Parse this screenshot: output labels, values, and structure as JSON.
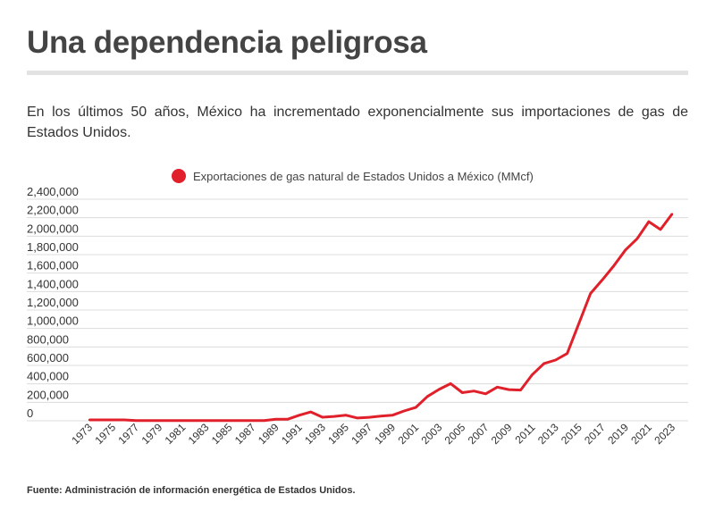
{
  "header": {
    "title": "Una dependencia peligrosa",
    "subtitle": "En los últimos 50 años, México ha incrementado exponencialmente sus importaciones de gas de Estados Unidos."
  },
  "footer": {
    "source": "Fuente: Administración de información energética de Estados Unidos."
  },
  "chart_data": {
    "type": "line",
    "title": "",
    "xlabel": "",
    "ylabel": "",
    "legend": {
      "position": "top-center",
      "entries": [
        "Exportaciones de gas natural de Estados Unidos a México (MMcf)"
      ]
    },
    "series_color": "#e0202a",
    "grid": true,
    "ylim": [
      0,
      2400000
    ],
    "yticks": [
      0,
      200000,
      400000,
      600000,
      800000,
      1000000,
      1200000,
      1400000,
      1600000,
      1800000,
      2000000,
      2200000,
      2400000
    ],
    "ytick_labels": [
      "0",
      "200,000",
      "400,000",
      "600,000",
      "800,000",
      "1,000,000",
      "1,200,000",
      "1,400,000",
      "1,600,000",
      "1,800,000",
      "2,000,000",
      "2,200,000",
      "2,400,000"
    ],
    "xtick_labels": [
      "1973",
      "1975",
      "1977",
      "1979",
      "1981",
      "1983",
      "1985",
      "1987",
      "1989",
      "1991",
      "1993",
      "1995",
      "1997",
      "1999",
      "2001",
      "2003",
      "2005",
      "2007",
      "2009",
      "2011",
      "2013",
      "2015",
      "2017",
      "2019",
      "2021",
      "2023"
    ],
    "x": [
      1973,
      1974,
      1975,
      1976,
      1977,
      1978,
      1979,
      1980,
      1981,
      1982,
      1983,
      1984,
      1985,
      1986,
      1987,
      1988,
      1989,
      1990,
      1991,
      1992,
      1993,
      1994,
      1995,
      1996,
      1997,
      1998,
      1999,
      2000,
      2001,
      2002,
      2003,
      2004,
      2005,
      2006,
      2007,
      2008,
      2009,
      2010,
      2011,
      2012,
      2013,
      2014,
      2015,
      2016,
      2017,
      2018,
      2019,
      2020,
      2021,
      2022,
      2023
    ],
    "series": [
      {
        "name": "Exportaciones de gas natural de Estados Unidos a México (MMcf)",
        "values": [
          10000,
          10000,
          10000,
          10000,
          2000,
          2000,
          2000,
          2000,
          2000,
          2000,
          2000,
          2000,
          2000,
          2000,
          2000,
          2000,
          17000,
          16000,
          60000,
          96000,
          39000,
          47000,
          61000,
          30000,
          38000,
          50000,
          60000,
          106000,
          144000,
          263000,
          340000,
          403000,
          305000,
          322000,
          292000,
          365000,
          338000,
          333000,
          499000,
          620000,
          658000,
          729000,
          1054000,
          1379000,
          1525000,
          1679000,
          1850000,
          1972000,
          2157000,
          2072000,
          2240000
        ]
      }
    ]
  }
}
